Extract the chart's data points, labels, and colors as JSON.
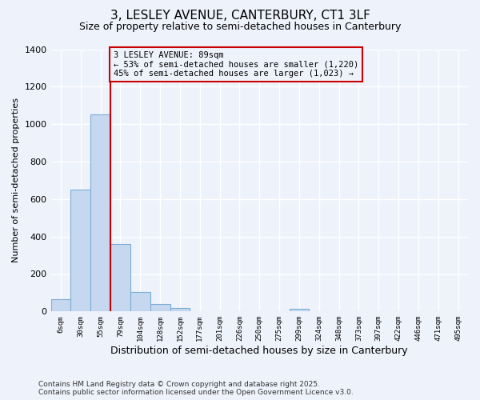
{
  "title_line1": "3, LESLEY AVENUE, CANTERBURY, CT1 3LF",
  "title_line2": "Size of property relative to semi-detached houses in Canterbury",
  "xlabel": "Distribution of semi-detached houses by size in Canterbury",
  "ylabel": "Number of semi-detached properties",
  "categories": [
    "6sqm",
    "30sqm",
    "55sqm",
    "79sqm",
    "104sqm",
    "128sqm",
    "152sqm",
    "177sqm",
    "201sqm",
    "226sqm",
    "250sqm",
    "275sqm",
    "299sqm",
    "324sqm",
    "348sqm",
    "373sqm",
    "397sqm",
    "422sqm",
    "446sqm",
    "471sqm",
    "495sqm"
  ],
  "bar_heights": [
    65,
    650,
    1050,
    360,
    105,
    40,
    20,
    0,
    0,
    0,
    0,
    0,
    15,
    0,
    0,
    0,
    0,
    0,
    0,
    0,
    0
  ],
  "vline_index": 3,
  "ann_text_line1": "3 LESLEY AVENUE: 89sqm",
  "ann_text_line2": "← 53% of semi-detached houses are smaller (1,220)",
  "ann_text_line3": "45% of semi-detached houses are larger (1,023) →",
  "bar_color": "#c5d8f0",
  "bar_edge_color": "#7aadd4",
  "vline_color": "#cc0000",
  "annotation_box_edgecolor": "#cc0000",
  "background_color": "#eef2fb",
  "grid_color": "#ffffff",
  "footer_line1": "Contains HM Land Registry data © Crown copyright and database right 2025.",
  "footer_line2": "Contains public sector information licensed under the Open Government Licence v3.0.",
  "ylim": [
    0,
    1400
  ],
  "yticks": [
    0,
    200,
    400,
    600,
    800,
    1000,
    1200,
    1400
  ]
}
